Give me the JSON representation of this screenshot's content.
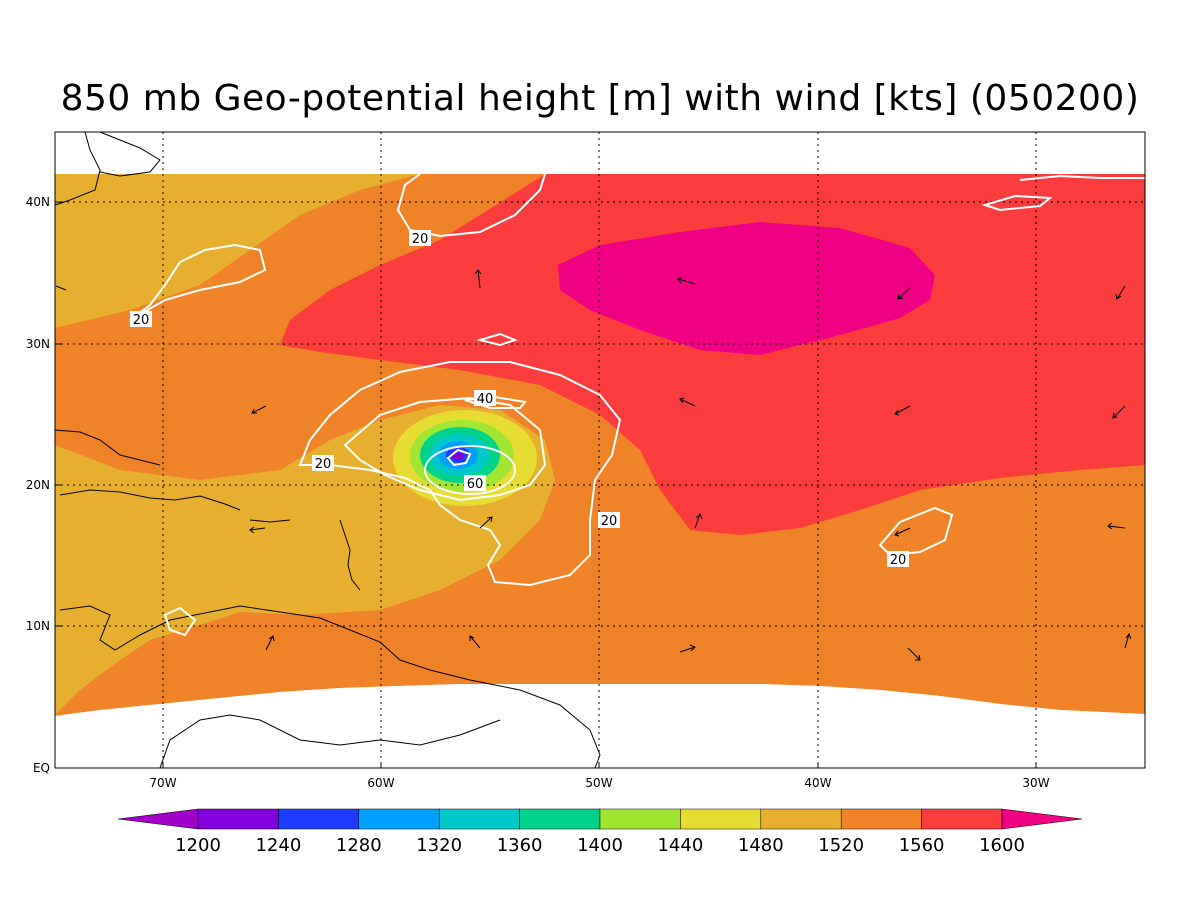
{
  "title": "850 mb Geo-potential height [m] with wind [kts] (050200)",
  "map": {
    "lon_labels": [
      "70W",
      "60W",
      "50W",
      "40W",
      "30W"
    ],
    "lat_labels": [
      "40N",
      "30N",
      "20N",
      "10N",
      "EQ"
    ],
    "contour_labels": [
      {
        "id": "c20-nw",
        "text": "20"
      },
      {
        "id": "c20-w",
        "text": "20"
      },
      {
        "id": "c20-west-storm",
        "text": "20"
      },
      {
        "id": "c40",
        "text": "40"
      },
      {
        "id": "c60",
        "text": "60"
      },
      {
        "id": "c20-se",
        "text": "20"
      },
      {
        "id": "c20-e",
        "text": "20"
      }
    ]
  },
  "colorbar": {
    "labels": [
      "1200",
      "1240",
      "1280",
      "1320",
      "1360",
      "1400",
      "1440",
      "1480",
      "1520",
      "1560",
      "1600"
    ],
    "colors": [
      "#a000c8",
      "#8200dc",
      "#1e3cff",
      "#00a0ff",
      "#00c8c8",
      "#00d28c",
      "#a0e632",
      "#e6dc32",
      "#e6af2d",
      "#f08228",
      "#fa3c3c",
      "#f00082"
    ]
  }
}
